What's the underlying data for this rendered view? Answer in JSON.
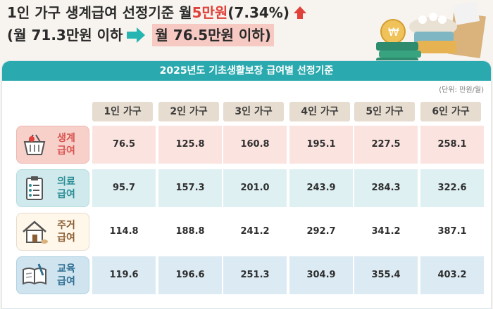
{
  "headline": {
    "line1_main": "1인 가구 생계급여 선정기준 월 ",
    "line1_red": "5만원",
    "line1_pct": "(7.34%)",
    "line2_open": "(월 71.3만원 이하",
    "line2_highlight": "월 76.5만원 이하)"
  },
  "banner": "2025년도 기초생활보장 급여별 선정기준",
  "unit": "(단위: 만원/월)",
  "columns": [
    "1인 가구",
    "2인 가구",
    "3인 가구",
    "4인 가구",
    "5인 가구",
    "6인 가구"
  ],
  "rows": [
    {
      "label_top": "생계",
      "label_bottom": "급여",
      "icon": "shopping-basket-icon",
      "values": [
        "76.5",
        "125.8",
        "160.8",
        "195.1",
        "227.5",
        "258.1"
      ]
    },
    {
      "label_top": "의료",
      "label_bottom": "급여",
      "icon": "clipboard-icon",
      "values": [
        "95.7",
        "157.3",
        "201.0",
        "243.9",
        "284.3",
        "322.6"
      ]
    },
    {
      "label_top": "주거",
      "label_bottom": "급여",
      "icon": "house-icon",
      "values": [
        "114.8",
        "188.8",
        "241.2",
        "292.7",
        "341.2",
        "387.1"
      ]
    },
    {
      "label_top": "교육",
      "label_bottom": "급여",
      "icon": "book-pencil-icon",
      "values": [
        "119.6",
        "196.6",
        "251.3",
        "304.9",
        "355.4",
        "403.2"
      ]
    }
  ],
  "colors": {
    "accent": "#2aa9ae",
    "red": "#e0413a",
    "header_bg": "#e6dccf"
  }
}
